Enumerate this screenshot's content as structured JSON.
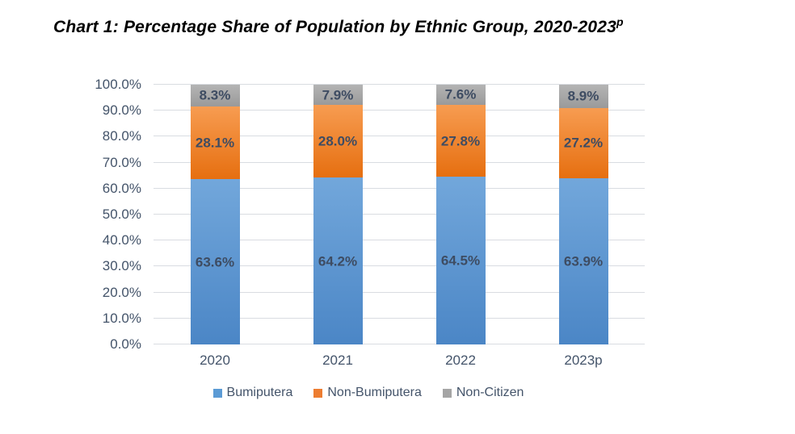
{
  "title": {
    "text": "Chart 1: Percentage Share of Population by Ethnic Group, 2020-2023",
    "superscript": "p"
  },
  "chart_data": {
    "type": "bar",
    "stacked": true,
    "title": "Chart 1: Percentage Share of Population by Ethnic Group, 2020-2023p",
    "categories": [
      "2020",
      "2021",
      "2022",
      "2023p"
    ],
    "series": [
      {
        "name": "Bumiputera",
        "values": [
          63.6,
          64.2,
          64.5,
          63.9
        ],
        "labels": [
          "63.6%",
          "64.2%",
          "64.5%",
          "63.9%"
        ],
        "color": "#5b9bd5",
        "gradient_top": "#72a7db",
        "gradient_bottom": "#4b86c6"
      },
      {
        "name": "Non-Bumiputera",
        "values": [
          28.1,
          28.0,
          27.8,
          27.2
        ],
        "labels": [
          "28.1%",
          "28.0%",
          "27.8%",
          "27.2%"
        ],
        "color": "#ed7d31",
        "gradient_top": "#f79c51",
        "gradient_bottom": "#e66f10"
      },
      {
        "name": "Non-Citizen",
        "values": [
          8.3,
          7.9,
          7.6,
          8.9
        ],
        "labels": [
          "8.3%",
          "7.9%",
          "7.6%",
          "8.9%"
        ],
        "color": "#a5a5a5",
        "gradient_top": "#b4b4b4",
        "gradient_bottom": "#9a9a9a"
      }
    ],
    "y_ticks": [
      "0.0%",
      "10.0%",
      "20.0%",
      "30.0%",
      "40.0%",
      "50.0%",
      "60.0%",
      "70.0%",
      "80.0%",
      "90.0%",
      "100.0%"
    ],
    "ylim": [
      0,
      100
    ],
    "grid": true,
    "legend_position": "bottom",
    "xlabel": "",
    "ylabel": "",
    "colors": {
      "axis_label": "#44546a",
      "data_label": "#3e4c62",
      "gridline": "#d9dce1",
      "title": "#000000"
    }
  }
}
